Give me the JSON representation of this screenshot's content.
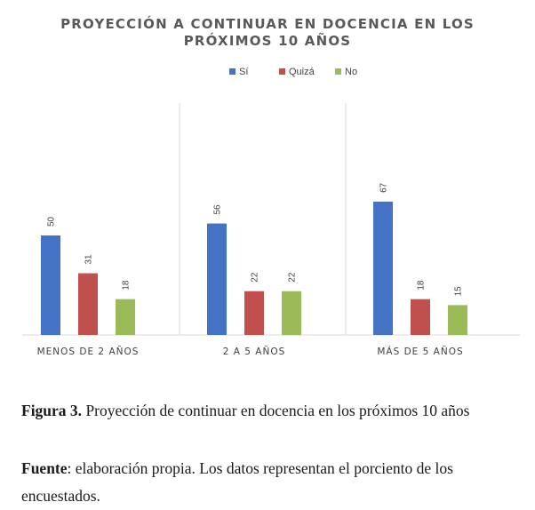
{
  "chart_data": {
    "type": "bar",
    "title_line1": "PROYECCIÓN A CONTINUAR EN DOCENCIA EN LOS",
    "title_line2": "PRÓXIMOS 10 AÑOS",
    "categories": [
      "MENOS DE 2 AÑOS",
      "2 A 5 AÑOS",
      "MÁS DE 5 AÑOS"
    ],
    "series": [
      {
        "name": "Sí",
        "color": "#4472c4",
        "values": [
          50,
          56,
          67
        ]
      },
      {
        "name": "Quizá",
        "color": "#c0504d",
        "values": [
          31,
          22,
          18
        ]
      },
      {
        "name": "No",
        "color": "#9bbb59",
        "values": [
          18,
          22,
          15
        ]
      }
    ],
    "ylim": [
      0,
      100
    ],
    "legend": "top-center",
    "grid": false,
    "category_separators": true
  },
  "caption": {
    "figure_label": "Figura 3.",
    "figure_text": " Proyección de continuar en docencia en los próximos 10 años",
    "source_label": "Fuente",
    "source_text": ": elaboración propia. Los datos representan el porciento de los encuestados."
  }
}
